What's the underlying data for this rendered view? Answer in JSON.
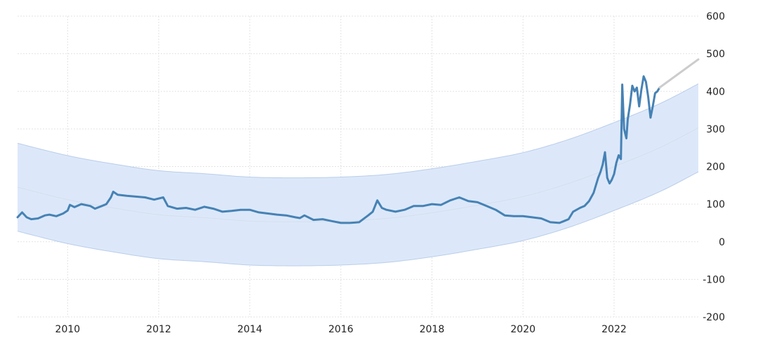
{
  "chart_data": {
    "type": "line",
    "title": "",
    "xlabel": "",
    "ylabel": "",
    "xlim": [
      2008.9,
      2023.85
    ],
    "ylim": [
      -200,
      600
    ],
    "y_ticks": [
      600,
      500,
      400,
      300,
      200,
      100,
      0,
      -100,
      -200
    ],
    "x_ticks": [
      2010,
      2012,
      2014,
      2016,
      2018,
      2020,
      2022
    ],
    "y_axis_position": "right",
    "grid": true,
    "colors": {
      "series": "#4682b4",
      "forecast": "#cccccc",
      "band_fill": "#dce8fa",
      "band_edge": "#b9cde9",
      "trend": "#d6deea",
      "grid": "#e3e3e3"
    },
    "series": [
      {
        "role": "actual",
        "x": [
          2008.9,
          2009.0,
          2009.1,
          2009.2,
          2009.35,
          2009.5,
          2009.6,
          2009.75,
          2009.9,
          2010.0,
          2010.05,
          2010.15,
          2010.3,
          2010.5,
          2010.6,
          2010.75,
          2010.85,
          2010.95,
          2011.0,
          2011.1,
          2011.3,
          2011.5,
          2011.7,
          2011.9,
          2012.1,
          2012.2,
          2012.4,
          2012.6,
          2012.8,
          2013.0,
          2013.2,
          2013.4,
          2013.6,
          2013.8,
          2014.0,
          2014.2,
          2014.4,
          2014.6,
          2014.8,
          2015.0,
          2015.1,
          2015.2,
          2015.4,
          2015.6,
          2015.8,
          2016.0,
          2016.2,
          2016.4,
          2016.6,
          2016.7,
          2016.8,
          2016.9,
          2017.0,
          2017.2,
          2017.4,
          2017.6,
          2017.8,
          2018.0,
          2018.2,
          2018.4,
          2018.6,
          2018.8,
          2019.0,
          2019.2,
          2019.4,
          2019.6,
          2019.8,
          2020.0,
          2020.2,
          2020.4,
          2020.6,
          2020.8,
          2020.9,
          2021.0,
          2021.1,
          2021.25,
          2021.35,
          2021.45,
          2021.55,
          2021.65,
          2021.7,
          2021.75,
          2021.8,
          2021.85,
          2021.9,
          2021.95,
          2022.0,
          2022.05,
          2022.1,
          2022.15,
          2022.18,
          2022.22,
          2022.27,
          2022.3,
          2022.35,
          2022.4,
          2022.45,
          2022.5,
          2022.55,
          2022.6,
          2022.65,
          2022.7,
          2022.75,
          2022.8,
          2022.85,
          2022.9,
          2022.95,
          2023.0
        ],
        "y": [
          65,
          78,
          65,
          60,
          62,
          70,
          72,
          68,
          75,
          83,
          98,
          92,
          100,
          95,
          88,
          95,
          100,
          118,
          133,
          125,
          122,
          120,
          118,
          112,
          118,
          95,
          88,
          90,
          85,
          93,
          88,
          80,
          82,
          85,
          85,
          78,
          75,
          72,
          70,
          65,
          63,
          70,
          58,
          60,
          55,
          50,
          50,
          52,
          70,
          80,
          110,
          90,
          85,
          80,
          85,
          95,
          95,
          100,
          98,
          110,
          118,
          108,
          105,
          95,
          85,
          70,
          68,
          68,
          65,
          62,
          52,
          50,
          55,
          60,
          80,
          90,
          95,
          108,
          130,
          170,
          185,
          205,
          238,
          170,
          155,
          165,
          180,
          210,
          230,
          220,
          418,
          300,
          275,
          325,
          365,
          415,
          400,
          410,
          360,
          405,
          440,
          425,
          385,
          330,
          360,
          395,
          400,
          410
        ]
      },
      {
        "role": "forecast",
        "x": [
          2023.0,
          2023.85
        ],
        "y": [
          410,
          485
        ]
      }
    ],
    "band": {
      "role": "trend channel",
      "x": [
        2008.9,
        2010.0,
        2011.0,
        2012.0,
        2013.0,
        2014.0,
        2015.0,
        2016.0,
        2017.0,
        2018.0,
        2019.0,
        2020.0,
        2021.0,
        2022.0,
        2023.0,
        2023.85
      ],
      "center": [
        145,
        112,
        90,
        72,
        64,
        55,
        53,
        55,
        62,
        77,
        97,
        120,
        155,
        200,
        250,
        303
      ],
      "upper": [
        262,
        229,
        207,
        189,
        181,
        172,
        170,
        172,
        179,
        194,
        214,
        237,
        272,
        317,
        367,
        420
      ],
      "lower": [
        28,
        -5,
        -27,
        -45,
        -53,
        -62,
        -64,
        -62,
        -55,
        -40,
        -20,
        3,
        38,
        83,
        133,
        186
      ]
    }
  }
}
